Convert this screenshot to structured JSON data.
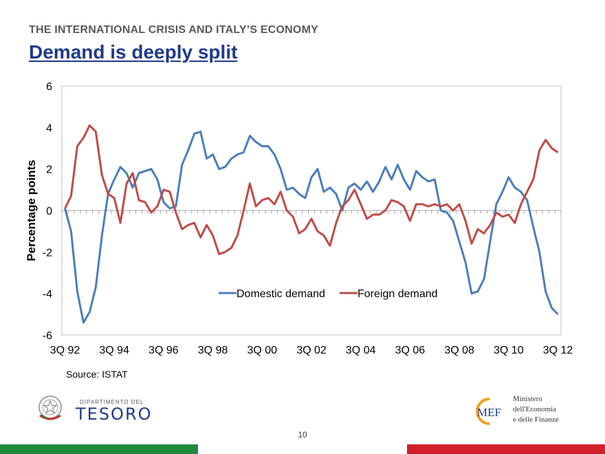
{
  "header": {
    "kicker": "THE INTERNATIONAL CRISIS AND ITALY’S ECONOMY",
    "title": "Demand is deeply split"
  },
  "source": "Source: ISTAT",
  "page_number": "10",
  "logos": {
    "tesoro_dept": "DIPARTIMENTO DEL",
    "tesoro_name": "TESORO",
    "mef_mark": "MEF",
    "mef_line1": "Ministero",
    "mef_line2": "dell'Economia",
    "mef_line3": "e delle Finanze"
  },
  "colors": {
    "domestic": "#4a7ebb",
    "foreign": "#be4b48",
    "title": "#1f3a8a",
    "green_band": "#1f8a3c",
    "red_band": "#d0202a"
  },
  "chart_data": {
    "type": "line",
    "ylabel": "Percentage points",
    "ylim": [
      -6,
      6
    ],
    "yticks": [
      -6,
      -4,
      -2,
      0,
      2,
      4,
      6
    ],
    "x_tick_labels": [
      "3Q 92",
      "3Q 94",
      "3Q 96",
      "3Q 98",
      "3Q 00",
      "3Q 02",
      "3Q 04",
      "3Q 06",
      "3Q 08",
      "3Q 10",
      "3Q 12"
    ],
    "x_start": "3Q 92",
    "x_end": "3Q 12",
    "legend_position": "center-bottom",
    "grid": false,
    "series": [
      {
        "name": "Domestic demand",
        "color": "#4a7ebb",
        "values": [
          0.1,
          -1.0,
          -3.9,
          -5.4,
          -4.9,
          -3.7,
          -1.2,
          0.8,
          1.5,
          2.1,
          1.8,
          1.1,
          1.8,
          1.9,
          2.0,
          1.5,
          0.4,
          0.1,
          0.2,
          2.2,
          2.9,
          3.7,
          3.8,
          2.5,
          2.7,
          2.0,
          2.1,
          2.5,
          2.7,
          2.8,
          3.6,
          3.3,
          3.1,
          3.1,
          2.7,
          2.0,
          1.0,
          1.1,
          0.8,
          0.6,
          1.6,
          2.0,
          0.9,
          1.1,
          0.8,
          0.0,
          1.1,
          1.3,
          1.0,
          1.4,
          0.9,
          1.4,
          2.1,
          1.5,
          2.2,
          1.5,
          1.0,
          1.9,
          1.6,
          1.4,
          1.5,
          0.0,
          -0.1,
          -0.5,
          -1.5,
          -2.5,
          -4.0,
          -3.9,
          -3.3,
          -1.5,
          0.3,
          0.9,
          1.6,
          1.1,
          0.9,
          0.5,
          -0.8,
          -2.0,
          -3.9,
          -4.7,
          -5.0
        ],
        "note_values": "quarterly, 3Q 92 to 3Q 12"
      },
      {
        "name": "Foreign demand",
        "color": "#be4b48",
        "values": [
          0.1,
          0.7,
          3.1,
          3.5,
          4.1,
          3.8,
          1.7,
          0.8,
          0.6,
          -0.6,
          1.3,
          1.8,
          0.5,
          0.4,
          -0.1,
          0.2,
          1.0,
          0.9,
          -0.1,
          -0.9,
          -0.7,
          -0.6,
          -1.3,
          -0.7,
          -1.2,
          -2.1,
          -2.0,
          -1.8,
          -1.2,
          0.0,
          1.3,
          0.2,
          0.5,
          0.6,
          0.3,
          0.9,
          0.0,
          -0.3,
          -1.1,
          -0.9,
          -0.4,
          -1.0,
          -1.2,
          -1.7,
          -0.6,
          0.2,
          0.5,
          1.0,
          0.3,
          -0.4,
          -0.2,
          -0.2,
          0.0,
          0.5,
          0.4,
          0.2,
          -0.5,
          0.3,
          0.3,
          0.2,
          0.3,
          0.2,
          0.3,
          0.0,
          0.3,
          -0.5,
          -1.6,
          -0.9,
          -1.1,
          -0.7,
          -0.1,
          -0.3,
          -0.2,
          -0.6,
          0.3,
          0.9,
          1.5,
          2.9,
          3.4,
          3.0,
          2.8
        ]
      }
    ]
  }
}
